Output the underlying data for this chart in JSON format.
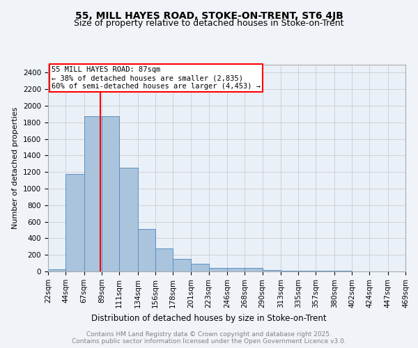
{
  "title1": "55, MILL HAYES ROAD, STOKE-ON-TRENT, ST6 4JB",
  "title2": "Size of property relative to detached houses in Stoke-on-Trent",
  "xlabel": "Distribution of detached houses by size in Stoke-on-Trent",
  "ylabel": "Number of detached properties",
  "bin_edges": [
    22,
    44,
    67,
    89,
    111,
    134,
    156,
    178,
    201,
    223,
    246,
    268,
    290,
    313,
    335,
    357,
    380,
    402,
    424,
    447,
    469
  ],
  "bar_heights": [
    25,
    1175,
    1875,
    1875,
    1250,
    510,
    275,
    155,
    90,
    45,
    40,
    40,
    20,
    12,
    8,
    6,
    5,
    4,
    3,
    3
  ],
  "bar_color": "#aac4de",
  "bar_edge_color": "#5a8fc0",
  "property_line_x": 87,
  "property_line_color": "red",
  "annotation_text": "55 MILL HAYES ROAD: 87sqm\n← 38% of detached houses are smaller (2,835)\n60% of semi-detached houses are larger (4,453) →",
  "annotation_box_color": "white",
  "annotation_edge_color": "red",
  "ylim": [
    0,
    2500
  ],
  "yticks": [
    0,
    200,
    400,
    600,
    800,
    1000,
    1200,
    1400,
    1600,
    1800,
    2000,
    2200,
    2400
  ],
  "grid_color": "#cccccc",
  "bg_color": "#f0f4f8",
  "plot_bg_color": "#eaf0f8",
  "footer_text": "Contains HM Land Registry data © Crown copyright and database right 2025.\nContains public sector information licensed under the Open Government Licence v3.0.",
  "title1_fontsize": 10,
  "title2_fontsize": 9,
  "xlabel_fontsize": 8.5,
  "ylabel_fontsize": 8,
  "tick_fontsize": 7.5,
  "annotation_fontsize": 7.5,
  "footer_fontsize": 6.5
}
